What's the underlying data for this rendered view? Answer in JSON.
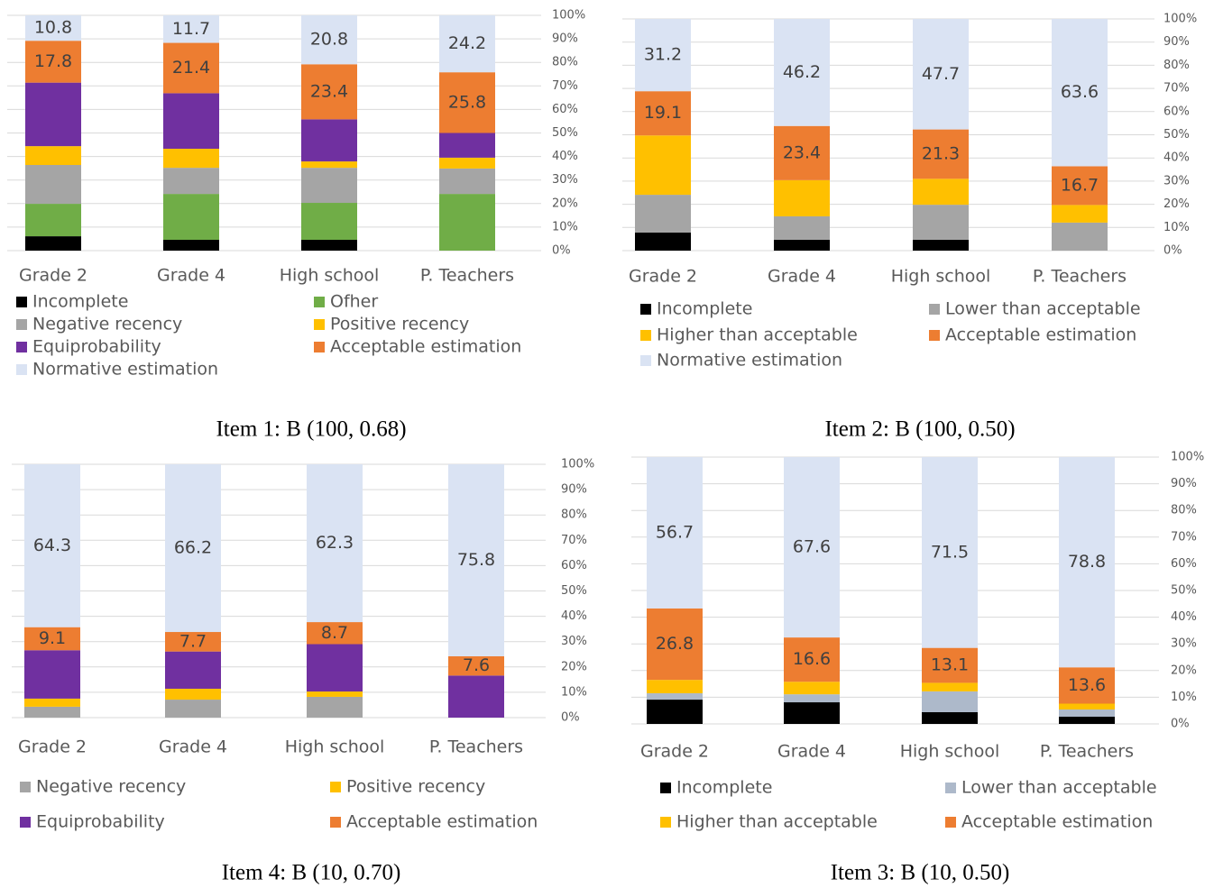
{
  "chart_data": [
    {
      "type": "stacked-bar",
      "title": "Item 1: B (100, 0.68)",
      "categories": [
        "Grade 2",
        "Grade 4",
        "High school",
        "P. Teachers"
      ],
      "ylim": [
        0,
        100
      ],
      "yticks": [
        {
          "value": 0,
          "label": "0%"
        },
        {
          "value": 10,
          "label": "10%"
        },
        {
          "value": 20,
          "label": "20%"
        },
        {
          "value": 30,
          "label": "30%"
        },
        {
          "value": 40,
          "label": "40%"
        },
        {
          "value": 50,
          "label": "50%"
        },
        {
          "value": 60,
          "label": "60%"
        },
        {
          "value": 70,
          "label": "70%"
        },
        {
          "value": 80,
          "label": "80%"
        },
        {
          "value": 90,
          "label": "90%"
        },
        {
          "value": 100,
          "label": "100%"
        }
      ],
      "grid": true,
      "series": [
        {
          "name": "Incomplete",
          "color": "#000000",
          "values": [
            6.1,
            4.6,
            4.6,
            0
          ]
        },
        {
          "name": "Ofher",
          "color": "#70ad47",
          "values": [
            13.8,
            19.5,
            15.7,
            24.1
          ]
        },
        {
          "name": "Negative recency",
          "color": "#a5a5a5",
          "values": [
            16.5,
            11.1,
            14.9,
            10.8
          ]
        },
        {
          "name": "Positive recency",
          "color": "#ffc000",
          "values": [
            8.0,
            8.1,
            2.7,
            4.6
          ]
        },
        {
          "name": "Equiprobability",
          "color": "#7030a0",
          "values": [
            27.0,
            23.6,
            17.9,
            10.5
          ]
        },
        {
          "name": "Acceptable estimation",
          "color": "#ed7d31",
          "values": [
            17.8,
            21.4,
            23.4,
            25.8
          ],
          "labels": true
        },
        {
          "name": "Normative estimation",
          "color": "#dae3f3",
          "values": [
            10.8,
            11.7,
            20.8,
            24.2
          ],
          "labels": true
        }
      ]
    },
    {
      "type": "stacked-bar",
      "title": "Item 2: B (100, 0.50)",
      "categories": [
        "Grade 2",
        "Grade 4",
        "High school",
        "P. Teachers"
      ],
      "ylim": [
        0,
        100
      ],
      "yticks": [
        {
          "value": 0,
          "label": "0%"
        },
        {
          "value": 10,
          "label": "10%"
        },
        {
          "value": 20,
          "label": "20%"
        },
        {
          "value": 30,
          "label": "30%"
        },
        {
          "value": 40,
          "label": "40%"
        },
        {
          "value": 50,
          "label": "50%"
        },
        {
          "value": 60,
          "label": "60%"
        },
        {
          "value": 70,
          "label": "70%"
        },
        {
          "value": 80,
          "label": "80%"
        },
        {
          "value": 90,
          "label": "90%"
        },
        {
          "value": 100,
          "label": "100%"
        }
      ],
      "grid": true,
      "series": [
        {
          "name": "Incomplete",
          "color": "#000000",
          "values": [
            7.8,
            4.7,
            4.7,
            0
          ]
        },
        {
          "name": "Lower than acceptable",
          "color": "#a5a5a5",
          "values": [
            16.3,
            10.1,
            15.1,
            12.1
          ]
        },
        {
          "name": "Higher than acceptable",
          "color": "#ffc000",
          "values": [
            25.6,
            15.6,
            11.2,
            7.6
          ]
        },
        {
          "name": "Acceptable estimation",
          "color": "#ed7d31",
          "values": [
            19.1,
            23.4,
            21.3,
            16.7
          ],
          "labels": true
        },
        {
          "name": "Normative estimation",
          "color": "#dae3f3",
          "values": [
            31.2,
            46.2,
            47.7,
            63.6
          ],
          "labels": true
        }
      ]
    },
    {
      "type": "stacked-bar",
      "title": "Item 4: B (10, 0.70)",
      "categories": [
        "Grade 2",
        "Grade 4",
        "High school",
        "P. Teachers"
      ],
      "ylim": [
        0,
        100
      ],
      "yticks": [
        {
          "value": 0,
          "label": "0%"
        },
        {
          "value": 10,
          "label": "10%"
        },
        {
          "value": 20,
          "label": "20%"
        },
        {
          "value": 30,
          "label": "30%"
        },
        {
          "value": 40,
          "label": "40%"
        },
        {
          "value": 50,
          "label": "50%"
        },
        {
          "value": 60,
          "label": "60%"
        },
        {
          "value": 70,
          "label": "70%"
        },
        {
          "value": 80,
          "label": "80%"
        },
        {
          "value": 90,
          "label": "90%"
        },
        {
          "value": 100,
          "label": "100%"
        }
      ],
      "grid": true,
      "series": [
        {
          "name": "Negative recency",
          "color": "#a5a5a5",
          "values": [
            4.3,
            7.1,
            8.2,
            0
          ]
        },
        {
          "name": "Positive recency",
          "color": "#ffc000",
          "values": [
            3.2,
            4.3,
            2.1,
            0
          ]
        },
        {
          "name": "Equiprobability",
          "color": "#7030a0",
          "values": [
            19.1,
            14.7,
            18.7,
            16.6
          ]
        },
        {
          "name": "Acceptable estimation",
          "color": "#ed7d31",
          "values": [
            9.1,
            7.7,
            8.7,
            7.6
          ],
          "labels": true
        },
        {
          "color": "#dae3f3",
          "values": [
            64.3,
            66.2,
            62.3,
            75.8
          ],
          "labels": true
        }
      ]
    },
    {
      "type": "stacked-bar",
      "title": "Item 3: B (10, 0.50)",
      "categories": [
        "Grade 2",
        "Grade 4",
        "High school",
        "P. Teachers"
      ],
      "ylim": [
        0,
        100
      ],
      "yticks": [
        {
          "value": 0,
          "label": "0%"
        },
        {
          "value": 10,
          "label": "10%"
        },
        {
          "value": 20,
          "label": "20%"
        },
        {
          "value": 30,
          "label": "30%"
        },
        {
          "value": 40,
          "label": "40%"
        },
        {
          "value": 50,
          "label": "50%"
        },
        {
          "value": 60,
          "label": "60%"
        },
        {
          "value": 70,
          "label": "70%"
        },
        {
          "value": 80,
          "label": "80%"
        },
        {
          "value": 90,
          "label": "90%"
        },
        {
          "value": 100,
          "label": "100%"
        }
      ],
      "grid": true,
      "series": [
        {
          "name": "Incomplete",
          "color": "#000000",
          "values": [
            9.1,
            8.1,
            4.4,
            2.7
          ]
        },
        {
          "name": "Lower than acceptable",
          "color": "#adb9ca",
          "values": [
            2.4,
            3.0,
            7.8,
            2.7
          ]
        },
        {
          "name": "Higher than acceptable",
          "color": "#ffc000",
          "values": [
            5.0,
            4.7,
            3.2,
            2.2
          ]
        },
        {
          "name": "Acceptable estimation",
          "color": "#ed7d31",
          "values": [
            26.8,
            16.6,
            13.1,
            13.6
          ],
          "labels": true
        },
        {
          "color": "#dae3f3",
          "values": [
            56.7,
            67.6,
            71.5,
            78.8
          ],
          "labels": true
        }
      ]
    }
  ]
}
